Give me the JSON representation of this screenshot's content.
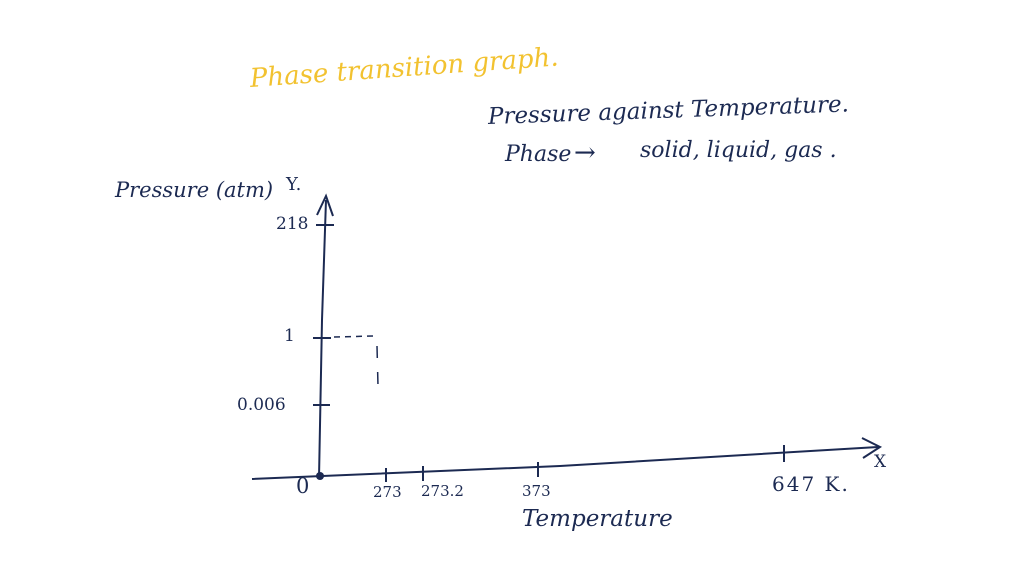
{
  "title": "Phase transition graph.",
  "subtitle_line1": "Pressure against Temperature.",
  "subtitle_line2": {
    "label": "Phase",
    "arrow": "→",
    "phases": "solid, liquid, gas ."
  },
  "y_axis": {
    "label": "Pressure (atm)",
    "letter": "Y.",
    "ticks": [
      "218",
      "1",
      "0.006"
    ]
  },
  "x_axis": {
    "label": "Temperature",
    "letter": "X",
    "origin_label": "0",
    "ticks": [
      "273",
      "273.2",
      "373",
      "647 K."
    ]
  },
  "colors": {
    "ink": "#1c2a52",
    "title_highlight": "#f2c230"
  }
}
